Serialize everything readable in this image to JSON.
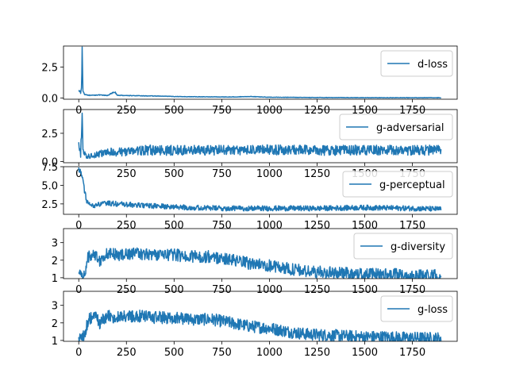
{
  "chart_data": [
    {
      "type": "line",
      "series": [
        {
          "name": "d-loss",
          "color": "#1f77b4"
        }
      ],
      "xlim": [
        -80,
        1985
      ],
      "ylim": [
        -0.1,
        4.2
      ],
      "xticks": [
        0,
        250,
        500,
        750,
        1000,
        1250,
        1500,
        1750
      ],
      "xtick_labels": [
        "0",
        "250",
        "500",
        "750",
        "1000",
        "1250",
        "1500",
        "1750"
      ],
      "yticks": [
        0.0,
        2.5
      ],
      "ytick_labels": [
        "0.0",
        "2.5"
      ],
      "legend_position": "top-right",
      "points": [
        [
          0,
          0.7
        ],
        [
          5,
          0.55
        ],
        [
          10,
          0.4
        ],
        [
          15,
          0.9
        ],
        [
          18,
          4.05
        ],
        [
          22,
          0.6
        ],
        [
          30,
          0.3
        ],
        [
          60,
          0.2
        ],
        [
          100,
          0.25
        ],
        [
          150,
          0.2
        ],
        [
          190,
          0.5
        ],
        [
          200,
          0.22
        ],
        [
          300,
          0.18
        ],
        [
          400,
          0.16
        ],
        [
          500,
          0.12
        ],
        [
          600,
          0.1
        ],
        [
          700,
          0.09
        ],
        [
          800,
          0.08
        ],
        [
          900,
          0.12
        ],
        [
          1000,
          0.06
        ],
        [
          1200,
          0.04
        ],
        [
          1400,
          0.03
        ],
        [
          1600,
          0.02
        ],
        [
          1900,
          0.02
        ]
      ],
      "noise": 0.12
    },
    {
      "type": "line",
      "series": [
        {
          "name": "g-adversarial",
          "color": "#1f77b4"
        }
      ],
      "xlim": [
        -80,
        1985
      ],
      "ylim": [
        -0.1,
        4.6
      ],
      "xticks": [
        0,
        250,
        500,
        750,
        1000,
        1250,
        1500,
        1750
      ],
      "xtick_labels": [
        "0",
        "250",
        "500",
        "750",
        "1000",
        "1250",
        "1500",
        "1750"
      ],
      "yticks": [
        0.0,
        2.5
      ],
      "ytick_labels": [
        "0.0",
        "2.5"
      ],
      "legend_position": "top-right",
      "points": [
        [
          0,
          1.3
        ],
        [
          10,
          0.6
        ],
        [
          18,
          4.4
        ],
        [
          22,
          1.0
        ],
        [
          40,
          0.4
        ],
        [
          80,
          0.6
        ],
        [
          150,
          0.8
        ],
        [
          250,
          0.9
        ],
        [
          350,
          1.0
        ],
        [
          500,
          1.0
        ],
        [
          750,
          1.0
        ],
        [
          1000,
          1.05
        ],
        [
          1250,
          1.0
        ],
        [
          1500,
          1.0
        ],
        [
          1750,
          1.0
        ],
        [
          1900,
          1.0
        ]
      ],
      "noise": 0.45
    },
    {
      "type": "line",
      "series": [
        {
          "name": "g-perceptual",
          "color": "#1f77b4"
        }
      ],
      "xlim": [
        -80,
        1985
      ],
      "ylim": [
        1.1,
        7.5
      ],
      "xticks": [
        0,
        250,
        500,
        750,
        1000,
        1250,
        1500,
        1750
      ],
      "xtick_labels": [
        "0",
        "250",
        "500",
        "750",
        "1000",
        "1250",
        "1500",
        "1750"
      ],
      "yticks": [
        2.5,
        5.0,
        7.5
      ],
      "ytick_labels": [
        "2.5",
        "5.0",
        "7.5"
      ],
      "legend_position": "top-right",
      "points": [
        [
          0,
          7.2
        ],
        [
          10,
          6.8
        ],
        [
          20,
          6.2
        ],
        [
          25,
          5.0
        ],
        [
          40,
          3.0
        ],
        [
          60,
          2.2
        ],
        [
          100,
          2.4
        ],
        [
          150,
          2.6
        ],
        [
          250,
          2.4
        ],
        [
          400,
          2.2
        ],
        [
          600,
          2.0
        ],
        [
          750,
          1.9
        ],
        [
          1000,
          1.9
        ],
        [
          1250,
          1.9
        ],
        [
          1500,
          2.0
        ],
        [
          1750,
          1.9
        ],
        [
          1900,
          1.8
        ]
      ],
      "noise": 0.35
    },
    {
      "type": "line",
      "series": [
        {
          "name": "g-diversity",
          "color": "#1f77b4"
        }
      ],
      "xlim": [
        -80,
        1985
      ],
      "ylim": [
        0.95,
        3.8
      ],
      "xticks": [
        0,
        250,
        500,
        750,
        1000,
        1250,
        1500,
        1750
      ],
      "xtick_labels": [
        "0",
        "250",
        "500",
        "750",
        "1000",
        "1250",
        "1500",
        "1750"
      ],
      "yticks": [
        1,
        2,
        3
      ],
      "ytick_labels": [
        "1",
        "2",
        "3"
      ],
      "legend_position": "top-right",
      "points": [
        [
          0,
          1.2
        ],
        [
          30,
          1.2
        ],
        [
          50,
          2.2
        ],
        [
          80,
          2.4
        ],
        [
          110,
          2.0
        ],
        [
          150,
          2.4
        ],
        [
          200,
          2.3
        ],
        [
          300,
          2.4
        ],
        [
          400,
          2.3
        ],
        [
          500,
          2.3
        ],
        [
          600,
          2.2
        ],
        [
          700,
          2.2
        ],
        [
          800,
          2.0
        ],
        [
          900,
          1.8
        ],
        [
          1000,
          1.7
        ],
        [
          1100,
          1.5
        ],
        [
          1200,
          1.35
        ],
        [
          1300,
          1.3
        ],
        [
          1400,
          1.25
        ],
        [
          1500,
          1.2
        ],
        [
          1600,
          1.2
        ],
        [
          1700,
          1.15
        ],
        [
          1900,
          1.12
        ]
      ],
      "noise": 0.35
    },
    {
      "type": "line",
      "series": [
        {
          "name": "g-loss",
          "color": "#1f77b4"
        }
      ],
      "xlim": [
        -80,
        1985
      ],
      "ylim": [
        0.95,
        3.8
      ],
      "xticks": [
        0,
        250,
        500,
        750,
        1000,
        1250,
        1500,
        1750
      ],
      "xtick_labels": [
        "0",
        "250",
        "500",
        "750",
        "1000",
        "1250",
        "1500",
        "1750"
      ],
      "yticks": [
        1,
        2,
        3
      ],
      "ytick_labels": [
        "1",
        "2",
        "3"
      ],
      "legend_position": "top-right",
      "points": [
        [
          0,
          1.2
        ],
        [
          30,
          1.2
        ],
        [
          50,
          2.2
        ],
        [
          80,
          2.4
        ],
        [
          110,
          2.0
        ],
        [
          150,
          2.4
        ],
        [
          200,
          2.3
        ],
        [
          300,
          2.4
        ],
        [
          400,
          2.3
        ],
        [
          500,
          2.3
        ],
        [
          600,
          2.2
        ],
        [
          700,
          2.2
        ],
        [
          800,
          2.0
        ],
        [
          900,
          1.8
        ],
        [
          1000,
          1.7
        ],
        [
          1100,
          1.5
        ],
        [
          1200,
          1.35
        ],
        [
          1300,
          1.3
        ],
        [
          1400,
          1.25
        ],
        [
          1500,
          1.2
        ],
        [
          1600,
          1.2
        ],
        [
          1700,
          1.15
        ],
        [
          1900,
          1.12
        ]
      ],
      "noise": 0.35
    }
  ]
}
